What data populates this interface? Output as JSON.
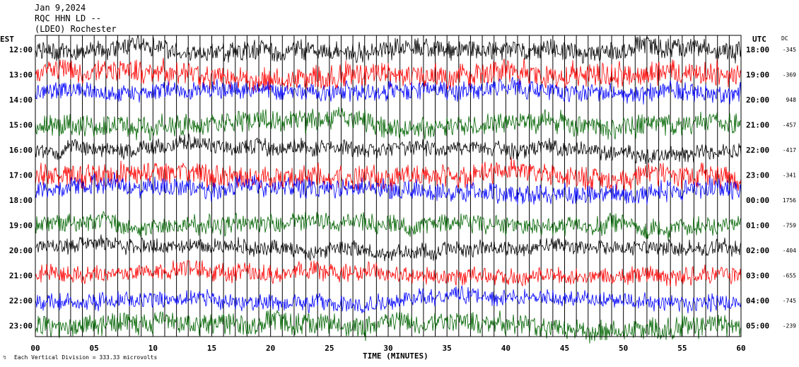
{
  "header": {
    "date": "Jan 9,2024",
    "station": "RQC HHN LD --",
    "network": "(LDEO) Rochester"
  },
  "colors": {
    "trace_cycle": [
      "#000000",
      "#ff0000",
      "#0000ff",
      "#006400"
    ],
    "grid": "#000000",
    "background": "#ffffff"
  },
  "chart_data": {
    "type": "line",
    "left_axis_label": "EST",
    "right_axis_label": "UTC",
    "dc_label": "DC",
    "xlabel": "TIME (MINUTES)",
    "xlim": [
      0,
      60
    ],
    "x_ticks": [
      "00",
      "05",
      "10",
      "15",
      "20",
      "25",
      "30",
      "35",
      "40",
      "45",
      "50",
      "55",
      "60"
    ],
    "grid": "vertical lines every minute",
    "footer_note": "Each Vertical Division =  333.33 microvolts",
    "rows": [
      {
        "est": "12:00",
        "utc": "18:00",
        "dc": "-345",
        "color": "black"
      },
      {
        "est": "13:00",
        "utc": "19:00",
        "dc": "-369",
        "color": "red"
      },
      {
        "est": "14:00",
        "utc": "20:00",
        "dc": "948",
        "color": "blue"
      },
      {
        "est": "15:00",
        "utc": "21:00",
        "dc": "-457",
        "color": "green"
      },
      {
        "est": "16:00",
        "utc": "22:00",
        "dc": "-417",
        "color": "black"
      },
      {
        "est": "17:00",
        "utc": "23:00",
        "dc": "-341",
        "color": "red"
      },
      {
        "est": "18:00",
        "utc": "00:00",
        "dc": "1756",
        "color": "blue"
      },
      {
        "est": "19:00",
        "utc": "01:00",
        "dc": "-759",
        "color": "green"
      },
      {
        "est": "20:00",
        "utc": "02:00",
        "dc": "-404",
        "color": "black"
      },
      {
        "est": "21:00",
        "utc": "03:00",
        "dc": "-655",
        "color": "red"
      },
      {
        "est": "22:00",
        "utc": "04:00",
        "dc": "-745",
        "color": "blue"
      },
      {
        "est": "23:00",
        "utc": "05:00",
        "dc": "-239",
        "color": "green"
      }
    ]
  }
}
